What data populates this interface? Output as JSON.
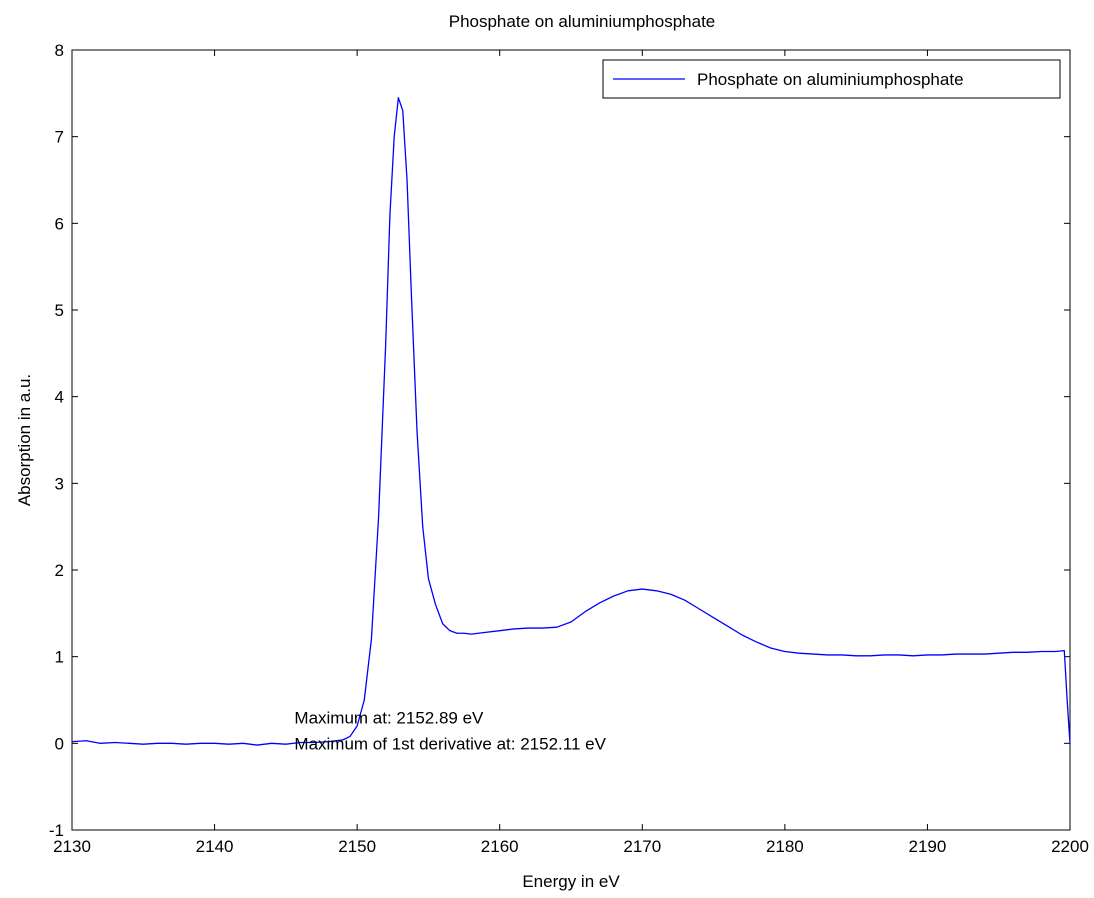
{
  "chart_data": {
    "type": "line",
    "title": "Phosphate on aluminiumphosphate",
    "xlabel": "Energy in eV",
    "ylabel": "Absorption in a.u.",
    "xlim": [
      2130,
      2200
    ],
    "ylim": [
      -1,
      8
    ],
    "xticks": [
      2130,
      2140,
      2150,
      2160,
      2170,
      2180,
      2190,
      2200
    ],
    "yticks": [
      -1,
      0,
      1,
      2,
      3,
      4,
      5,
      6,
      7,
      8
    ],
    "grid": false,
    "legend_position": "top-right",
    "series": [
      {
        "name": "Phosphate on aluminiumphosphate",
        "color": "#0000ff",
        "x": [
          2130,
          2131,
          2132,
          2133,
          2134,
          2135,
          2136,
          2137,
          2138,
          2139,
          2140,
          2141,
          2142,
          2143,
          2144,
          2145,
          2146,
          2147,
          2148,
          2149,
          2149.5,
          2150,
          2150.5,
          2151,
          2151.5,
          2152,
          2152.3,
          2152.6,
          2152.89,
          2153.2,
          2153.5,
          2153.8,
          2154.2,
          2154.6,
          2155,
          2155.5,
          2156,
          2156.5,
          2157,
          2157.5,
          2158,
          2159,
          2160,
          2161,
          2162,
          2163,
          2164,
          2165,
          2166,
          2167,
          2168,
          2169,
          2170,
          2171,
          2172,
          2173,
          2174,
          2175,
          2176,
          2177,
          2178,
          2179,
          2180,
          2181,
          2182,
          2183,
          2184,
          2185,
          2186,
          2187,
          2188,
          2189,
          2190,
          2191,
          2192,
          2193,
          2194,
          2195,
          2196,
          2197,
          2198,
          2199,
          2199.6,
          2199.8,
          2200
        ],
        "y": [
          0.02,
          0.03,
          0.0,
          0.01,
          0.0,
          -0.01,
          0.0,
          0.0,
          -0.01,
          0.0,
          0.0,
          -0.01,
          0.0,
          -0.02,
          0.0,
          -0.01,
          0.01,
          0.01,
          0.02,
          0.04,
          0.08,
          0.2,
          0.5,
          1.2,
          2.6,
          4.6,
          6.1,
          7.0,
          7.45,
          7.3,
          6.5,
          5.2,
          3.6,
          2.5,
          1.9,
          1.6,
          1.38,
          1.3,
          1.27,
          1.27,
          1.26,
          1.28,
          1.3,
          1.32,
          1.33,
          1.33,
          1.34,
          1.4,
          1.52,
          1.62,
          1.7,
          1.76,
          1.78,
          1.76,
          1.72,
          1.65,
          1.55,
          1.45,
          1.35,
          1.25,
          1.17,
          1.1,
          1.06,
          1.04,
          1.03,
          1.02,
          1.02,
          1.01,
          1.01,
          1.02,
          1.02,
          1.01,
          1.02,
          1.02,
          1.03,
          1.03,
          1.03,
          1.04,
          1.05,
          1.05,
          1.06,
          1.06,
          1.07,
          0.5,
          0.0
        ]
      }
    ],
    "annotations": [
      {
        "text": "Maximum at: 2152.89 eV",
        "x": 2145.6,
        "y": 0.3
      },
      {
        "text": "Maximum of 1st derivative at: 2152.11 eV",
        "x": 2145.6,
        "y": 0.0
      }
    ]
  }
}
